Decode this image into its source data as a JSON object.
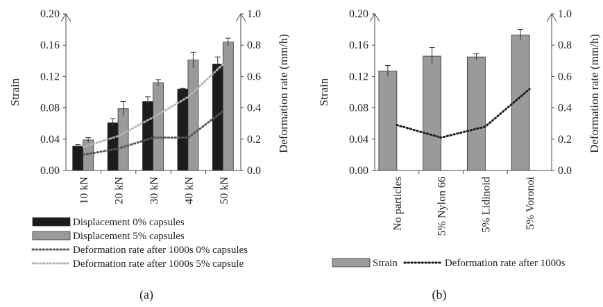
{
  "chart_data": [
    {
      "id": "a",
      "type": "bar",
      "caption": "(a)",
      "categories": [
        "10 kN",
        "20 kN",
        "30 kN",
        "40 kN",
        "50 kN"
      ],
      "ylabel": "Strain",
      "ylim": [
        0,
        0.2
      ],
      "yticks": [
        "0.00",
        "0.04",
        "0.08",
        "0.12",
        "0.16",
        "0.20"
      ],
      "y2label": "Deformation rate (mm/h)",
      "y2lim": [
        0,
        1.0
      ],
      "y2ticks": [
        "0.0",
        "0.2",
        "0.4",
        "0.6",
        "0.8",
        "1.0"
      ],
      "grid": false,
      "legend_position": "bottom",
      "series": [
        {
          "name": "Displacement 0% capsules",
          "kind": "bar",
          "axis": "left",
          "color": "#1c1c1c",
          "values": [
            0.031,
            0.061,
            0.088,
            0.104,
            0.136
          ],
          "errors": [
            0.002,
            0.005,
            0.006,
            0.001,
            0.009
          ]
        },
        {
          "name": "Displacement 5% capsules",
          "kind": "bar",
          "axis": "left",
          "color": "#9a9a9a",
          "values": [
            0.039,
            0.079,
            0.112,
            0.141,
            0.164
          ],
          "errors": [
            0.003,
            0.009,
            0.004,
            0.01,
            0.005
          ]
        },
        {
          "name": "Deformation rate after 1000s 0% capsules",
          "kind": "line",
          "axis": "right",
          "color": "#555555",
          "values": [
            0.1,
            0.14,
            0.21,
            0.21,
            0.38
          ]
        },
        {
          "name": "Deformation rate after 1000s 5% capsule",
          "kind": "line",
          "axis": "right",
          "color": "#b5b5b5",
          "values": [
            0.15,
            0.22,
            0.34,
            0.47,
            0.68
          ]
        }
      ]
    },
    {
      "id": "b",
      "type": "bar",
      "caption": "(b)",
      "categories": [
        "No particles",
        "5% Nylon 66",
        "5% Lidinoid",
        "5% Voronoi"
      ],
      "ylabel": "Strain",
      "ylim": [
        0,
        0.2
      ],
      "yticks": [
        "0.00",
        "0.04",
        "0.08",
        "0.12",
        "0.16",
        "0.20"
      ],
      "y2label": "Deformation rate (mm/h)",
      "y2lim": [
        0,
        1.0
      ],
      "y2ticks": [
        "0.0",
        "0.2",
        "0.4",
        "0.6",
        "0.8",
        "1.0"
      ],
      "grid": false,
      "legend_position": "bottom",
      "series": [
        {
          "name": "Strain",
          "kind": "bar",
          "axis": "left",
          "color": "#9a9a9a",
          "values": [
            0.127,
            0.146,
            0.145,
            0.173
          ],
          "errors": [
            0.007,
            0.011,
            0.004,
            0.007
          ]
        },
        {
          "name": "Deformation rate after 1000s",
          "kind": "line",
          "axis": "right",
          "color": "#1c1c1c",
          "values": [
            0.29,
            0.21,
            0.28,
            0.52
          ]
        }
      ]
    }
  ]
}
